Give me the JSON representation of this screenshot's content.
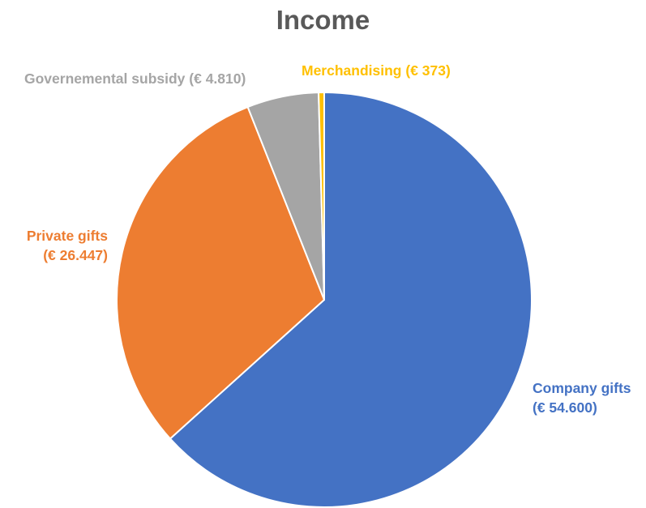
{
  "chart_data": {
    "type": "pie",
    "title": "Income",
    "unit": "€",
    "slices": [
      {
        "name": "Company gifts",
        "value": 54600,
        "value_label": "(€ 54.600)",
        "color": "#4472C4"
      },
      {
        "name": "Private gifts",
        "value": 26447,
        "value_label": "(€ 26.447)",
        "color": "#ED7D31"
      },
      {
        "name": "Governemental subsidy",
        "value": 4810,
        "value_label": "(€ 4.810)",
        "color": "#A5A5A5"
      },
      {
        "name": "Merchandising",
        "value": 373,
        "value_label": "(€ 373)",
        "color": "#FFC000"
      }
    ],
    "start_angle": "12 o'clock",
    "direction": "clockwise",
    "legend": "none",
    "data_labels": "outside"
  }
}
